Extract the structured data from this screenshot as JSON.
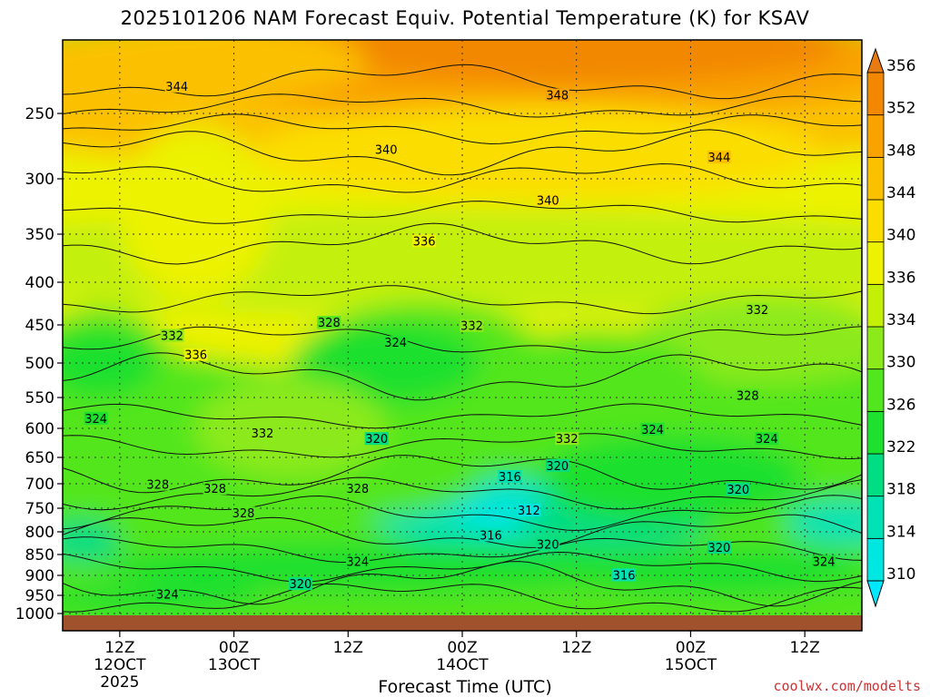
{
  "title": "2025101206 NAM Forecast Equiv. Potential Temperature (K) for KSAV",
  "watermark": "coolwx.com/modelts",
  "chart_data": {
    "type": "heatmap",
    "title": "2025101206 NAM Forecast Equiv. Potential Temperature (K) for KSAV",
    "xlabel": "Forecast Time (UTC)",
    "ylabel": "",
    "y_ticks": [
      250,
      300,
      350,
      400,
      450,
      500,
      550,
      600,
      650,
      700,
      750,
      800,
      850,
      900,
      950,
      1000
    ],
    "ylim_hpa": [
      200,
      1020
    ],
    "x_hours_range": [
      6,
      90
    ],
    "x_ticks": [
      {
        "hour": 12,
        "label": "12Z",
        "sub": "12OCT",
        "sub2": "2025"
      },
      {
        "hour": 24,
        "label": "00Z",
        "sub": "13OCT",
        "sub2": ""
      },
      {
        "hour": 36,
        "label": "12Z",
        "sub": "",
        "sub2": ""
      },
      {
        "hour": 48,
        "label": "00Z",
        "sub": "14OCT",
        "sub2": ""
      },
      {
        "hour": 60,
        "label": "12Z",
        "sub": "",
        "sub2": ""
      },
      {
        "hour": 72,
        "label": "00Z",
        "sub": "15OCT",
        "sub2": ""
      },
      {
        "hour": 84,
        "label": "12Z",
        "sub": "",
        "sub2": ""
      }
    ],
    "colorbar": {
      "levels": [
        310,
        314,
        318,
        322,
        326,
        330,
        334,
        336,
        340,
        344,
        348,
        352,
        356
      ],
      "colors": [
        "#00e8ff",
        "#00e6e0",
        "#00e2b4",
        "#00dd82",
        "#1ee02e",
        "#52e61e",
        "#8cea1a",
        "#c4f008",
        "#ecf200",
        "#fbde00",
        "#fbc100",
        "#f9a300",
        "#f28700",
        "#e87a12"
      ],
      "min_color": "#00e8ff",
      "max_color": "#e87a12"
    },
    "ground_color": "#a0522d",
    "contour_labels": [
      {
        "text": "344",
        "hour": 18,
        "p": 232
      },
      {
        "text": "348",
        "hour": 58,
        "p": 238
      },
      {
        "text": "340",
        "hour": 40,
        "p": 278
      },
      {
        "text": "344",
        "hour": 75,
        "p": 284
      },
      {
        "text": "340",
        "hour": 57,
        "p": 320
      },
      {
        "text": "336",
        "hour": 44,
        "p": 358
      },
      {
        "text": "332",
        "hour": 79,
        "p": 433
      },
      {
        "text": "328",
        "hour": 34,
        "p": 448
      },
      {
        "text": "332",
        "hour": 49,
        "p": 452
      },
      {
        "text": "324",
        "hour": 41,
        "p": 474
      },
      {
        "text": "332",
        "hour": 17.5,
        "p": 465
      },
      {
        "text": "336",
        "hour": 20,
        "p": 490
      },
      {
        "text": "328",
        "hour": 78,
        "p": 548
      },
      {
        "text": "324",
        "hour": 9.5,
        "p": 585
      },
      {
        "text": "332",
        "hour": 27,
        "p": 609
      },
      {
        "text": "324",
        "hour": 68,
        "p": 603
      },
      {
        "text": "320",
        "hour": 39,
        "p": 619
      },
      {
        "text": "332",
        "hour": 59,
        "p": 619
      },
      {
        "text": "324",
        "hour": 80,
        "p": 619
      },
      {
        "text": "320",
        "hour": 58,
        "p": 667
      },
      {
        "text": "316",
        "hour": 53,
        "p": 688
      },
      {
        "text": "328",
        "hour": 16,
        "p": 703
      },
      {
        "text": "328",
        "hour": 22,
        "p": 711
      },
      {
        "text": "328",
        "hour": 37,
        "p": 711
      },
      {
        "text": "320",
        "hour": 77,
        "p": 713
      },
      {
        "text": "312",
        "hour": 55,
        "p": 756
      },
      {
        "text": "328",
        "hour": 25,
        "p": 762
      },
      {
        "text": "316",
        "hour": 51,
        "p": 809
      },
      {
        "text": "320",
        "hour": 57,
        "p": 829
      },
      {
        "text": "320",
        "hour": 75,
        "p": 836
      },
      {
        "text": "324",
        "hour": 37,
        "p": 869
      },
      {
        "text": "324",
        "hour": 86,
        "p": 869
      },
      {
        "text": "316",
        "hour": 65,
        "p": 901
      },
      {
        "text": "320",
        "hour": 31,
        "p": 923
      },
      {
        "text": "324",
        "hour": 17,
        "p": 949
      }
    ]
  },
  "x_axis_title": "Forecast Time (UTC)"
}
